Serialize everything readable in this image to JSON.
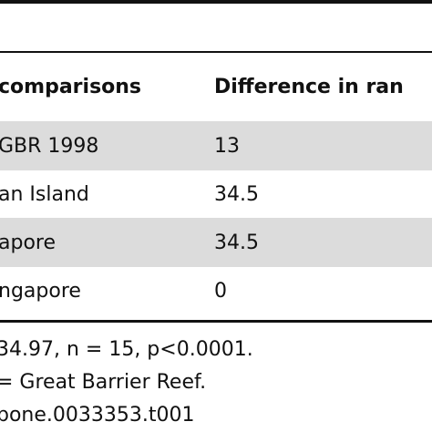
{
  "table": {
    "headers": [
      "comparisons",
      "Difference in ran"
    ],
    "rows": [
      [
        "GBR 1998",
        "13"
      ],
      [
        "an Island",
        "34.5"
      ],
      [
        "apore",
        "34.5"
      ],
      [
        "ngapore",
        "0"
      ]
    ],
    "shaded_rows": [
      0,
      2
    ]
  },
  "footnotes": [
    "34.97, n = 15, p<0.0001.",
    "= Great Barrier Reef.",
    "pone.0033353.t001"
  ],
  "colors": {
    "rule": "#111111",
    "shaded_row": "#dcdcdc",
    "text": "#111111"
  }
}
